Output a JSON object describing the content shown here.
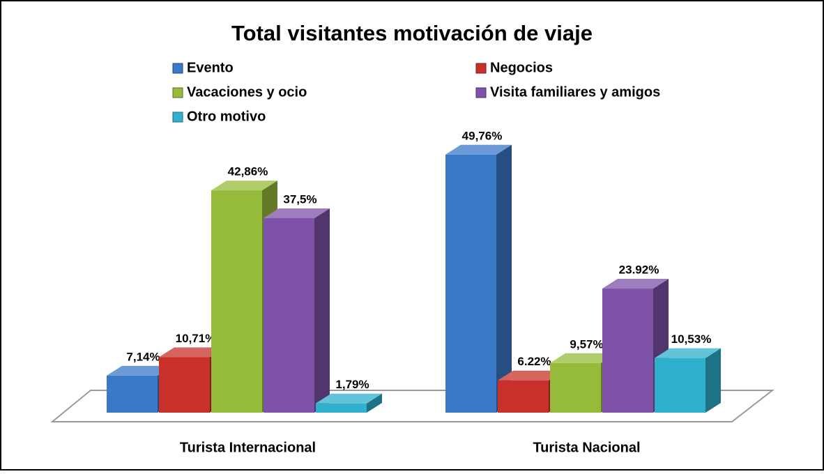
{
  "chart_data": {
    "type": "bar3d",
    "title": "Total visitantes motivación de viaje",
    "categories": [
      "Turista Internacional",
      "Turista Nacional"
    ],
    "series": [
      {
        "name": "Evento",
        "color": "#3a78c8",
        "values": [
          7.14,
          49.76
        ],
        "value_labels": [
          "7,14%",
          "49,76%"
        ]
      },
      {
        "name": "Negocios",
        "color": "#c8302a",
        "values": [
          10.71,
          6.22
        ],
        "value_labels": [
          "10,71%",
          "6.22%"
        ]
      },
      {
        "name": "Vacaciones y ocio",
        "color": "#96bb3a",
        "values": [
          42.86,
          9.57
        ],
        "value_labels": [
          "42,86%",
          "9,57%"
        ]
      },
      {
        "name": "Visita familiares y amigos",
        "color": "#7d52a8",
        "values": [
          37.5,
          23.92
        ],
        "value_labels": [
          "37,5%",
          "23.92%"
        ]
      },
      {
        "name": "Otro motivo",
        "color": "#2fb0cc",
        "values": [
          1.79,
          10.53
        ],
        "value_labels": [
          "1,79%",
          "10,53%"
        ]
      }
    ],
    "legend": "top"
  }
}
